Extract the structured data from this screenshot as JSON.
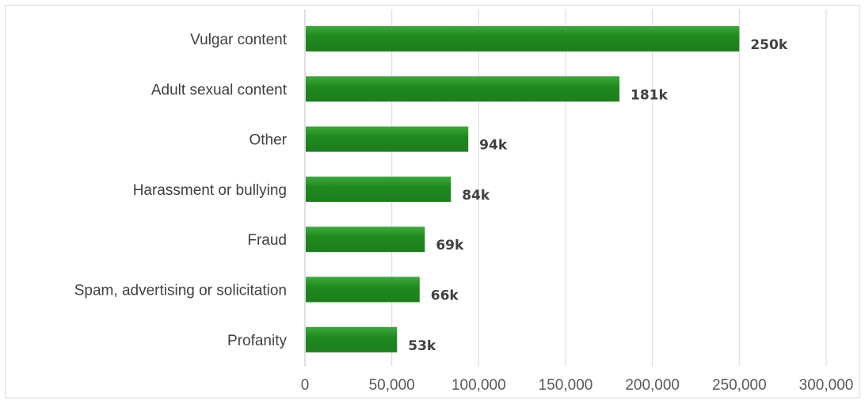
{
  "chart_data": {
    "type": "bar",
    "orientation": "horizontal",
    "categories": [
      "Vulgar content",
      "Adult sexual content",
      "Other",
      "Harassment or bullying",
      "Fraud",
      "Spam, advertising or solicitation",
      "Profanity"
    ],
    "values": [
      250000,
      181000,
      94000,
      84000,
      69000,
      66000,
      53000
    ],
    "data_labels": [
      "250k",
      "181k",
      "94k",
      "84k",
      "69k",
      "66k",
      "53k"
    ],
    "x_ticks": [
      "0",
      "50,000",
      "100,000",
      "150,000",
      "200,000",
      "250,000",
      "300,000"
    ],
    "xlim": [
      0,
      300000
    ],
    "title": "",
    "xlabel": "",
    "ylabel": "",
    "grid": true,
    "legend": false,
    "bar_color": "#1e7d1e",
    "bar_color_light": "#3fa83f"
  }
}
